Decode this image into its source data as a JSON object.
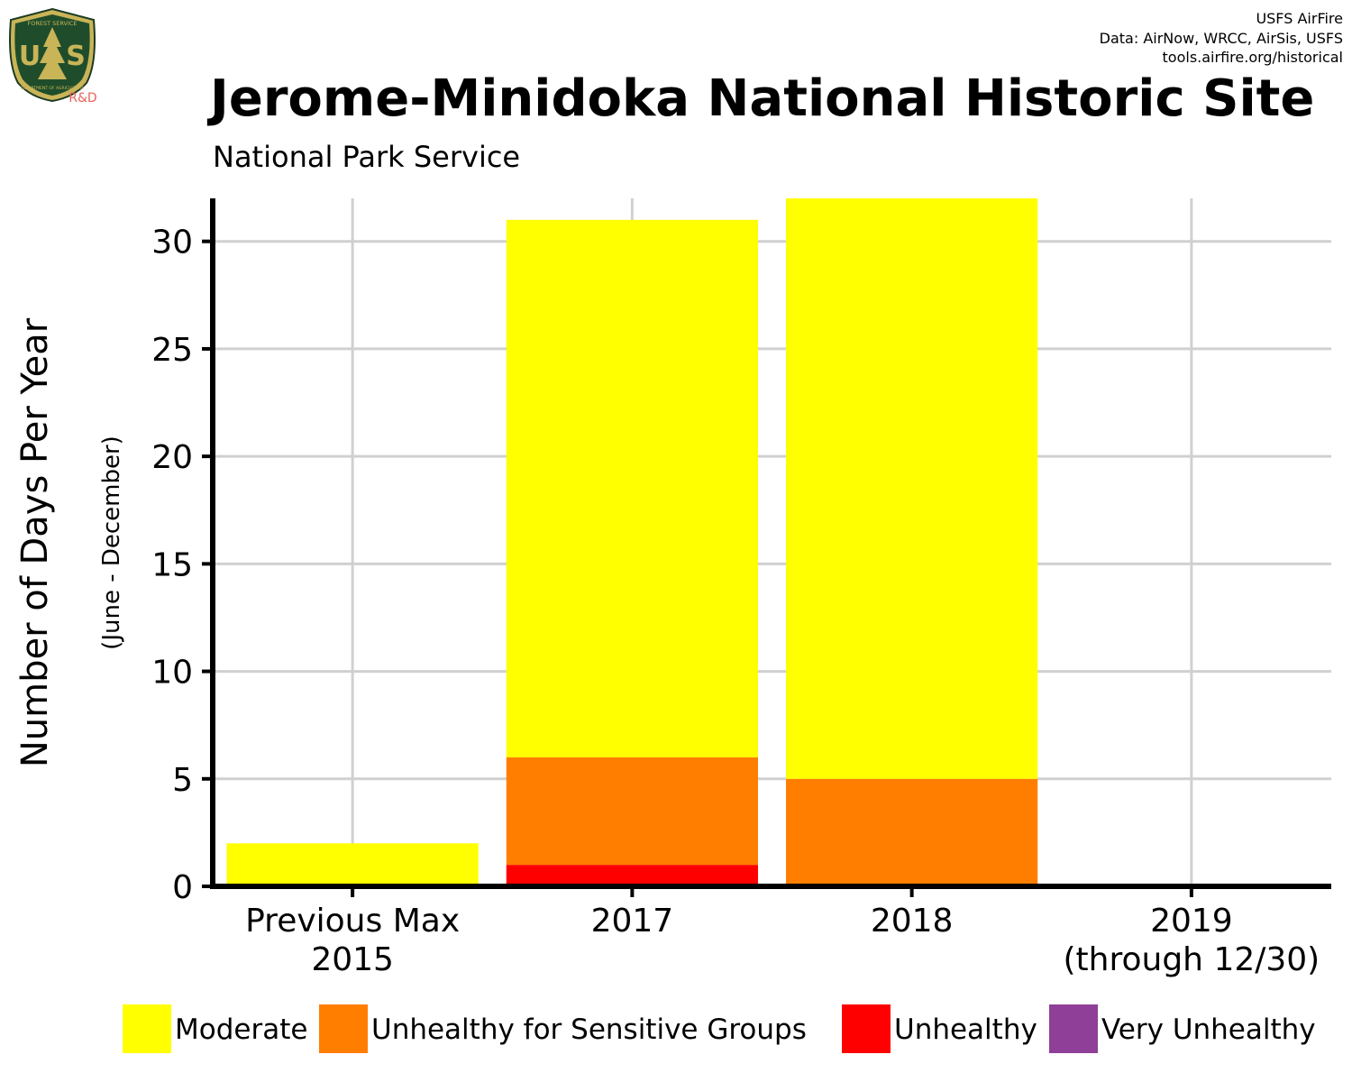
{
  "header": {
    "title": "Jerome-Minidoka National Historic Site",
    "subtitle": "National Park Service",
    "credits": [
      "USFS AirFire",
      "Data: AirNow, WRCC, AirSis, USFS",
      "tools.airfire.org/historical"
    ]
  },
  "logo": {
    "top_text": "FOREST SERVICE",
    "bottom_text": "DEPARTMENT OF AGRICULTURE",
    "letters_left": "U",
    "letters_right": "S",
    "tag": "R&D"
  },
  "colors": {
    "Moderate": "#FFFF00",
    "Unhealthy for Sensitive Groups": "#FF7E00",
    "Unhealthy": "#FF0000",
    "Very Unhealthy": "#8F3F97"
  },
  "chart_data": {
    "type": "bar",
    "stacked": true,
    "categories": [
      [
        "Previous Max",
        "2015"
      ],
      [
        "2017"
      ],
      [
        "2018"
      ],
      [
        "2019",
        "(through 12/30)"
      ]
    ],
    "series": [
      {
        "name": "Unhealthy",
        "values": [
          0,
          1,
          0,
          0
        ]
      },
      {
        "name": "Unhealthy for Sensitive Groups",
        "values": [
          0,
          5,
          5,
          0
        ]
      },
      {
        "name": "Moderate",
        "values": [
          2,
          25,
          27,
          0
        ]
      },
      {
        "name": "Very Unhealthy",
        "values": [
          0,
          0,
          0,
          0
        ]
      }
    ],
    "ylabel": "Number of Days Per Year",
    "ysublabel": "(June - December)",
    "ylim": [
      0,
      32
    ],
    "yticks": [
      0,
      5,
      10,
      15,
      20,
      25,
      30
    ],
    "grid": true,
    "legend": {
      "position": "bottom",
      "entries": [
        "Moderate",
        "Unhealthy for Sensitive Groups",
        "Unhealthy",
        "Very Unhealthy"
      ]
    }
  }
}
